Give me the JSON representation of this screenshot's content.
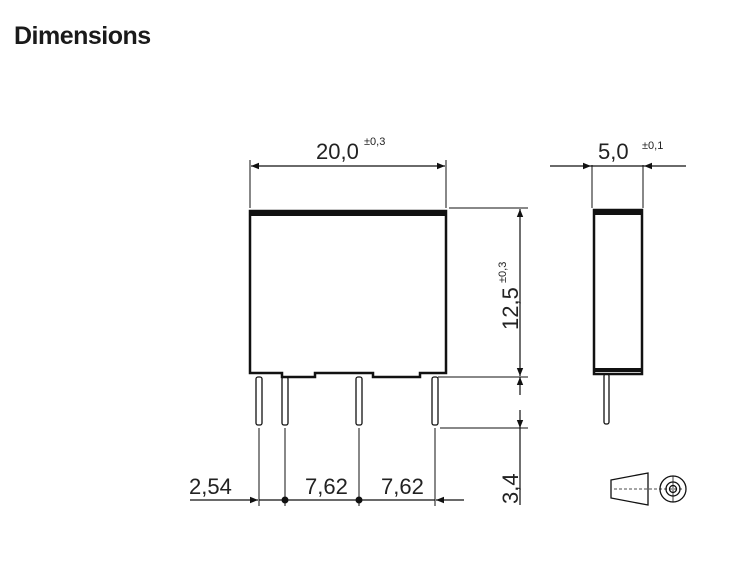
{
  "title": "Dimensions",
  "front_view": {
    "width": {
      "value": "20,0",
      "tolerance": "±0,3"
    },
    "height": {
      "value": "12,5",
      "tolerance": "±0,3"
    },
    "pin_length": {
      "value": "3,4"
    },
    "pin_offset": {
      "value": "2,54"
    },
    "pin_pitch_1": {
      "value": "7,62"
    },
    "pin_pitch_2": {
      "value": "7,62"
    }
  },
  "side_view": {
    "depth": {
      "value": "5,0",
      "tolerance": "±0,1"
    }
  }
}
